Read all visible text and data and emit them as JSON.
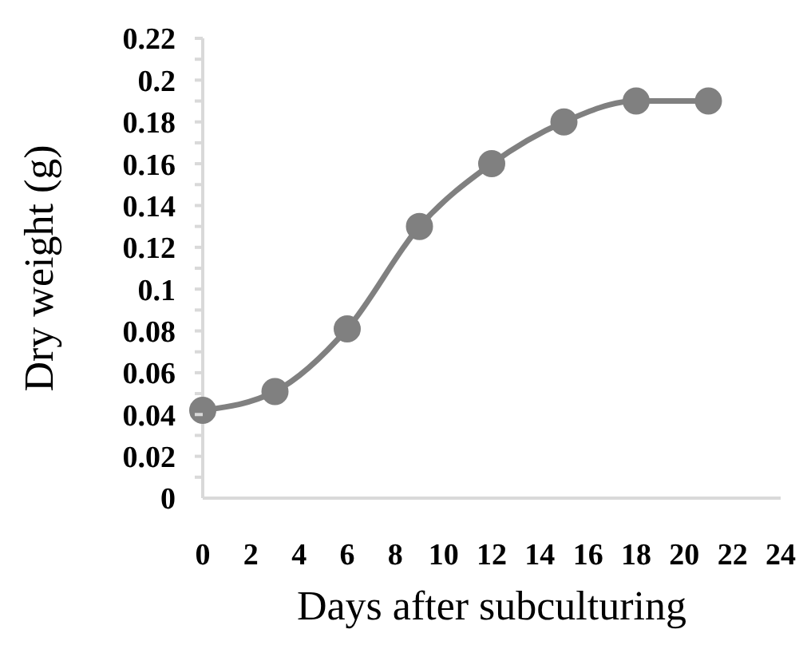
{
  "chart_data": {
    "type": "line",
    "xlabel": "Days after subculturing",
    "ylabel": "Dry weight (g)",
    "x": [
      0,
      3,
      6,
      9,
      12,
      15,
      18,
      21
    ],
    "series": [
      {
        "color": "#808080",
        "values": [
          0.042,
          0.051,
          0.081,
          0.13,
          0.16,
          0.18,
          0.19,
          0.19
        ]
      }
    ],
    "xlim": [
      0,
      24
    ],
    "xticks": [
      0,
      2,
      4,
      6,
      8,
      10,
      12,
      14,
      16,
      18,
      20,
      22,
      24
    ],
    "ylim": [
      0,
      0.22
    ],
    "yticks": [
      0,
      {
        "value": 0.01,
        "label": null
      },
      0.02,
      {
        "value": 0.03,
        "label": null
      },
      0.04,
      {
        "value": 0.05,
        "label": null
      },
      0.06,
      {
        "value": 0.07,
        "label": null
      },
      0.08,
      {
        "value": 0.09,
        "label": null
      },
      0.1,
      {
        "value": 0.11,
        "label": null
      },
      0.12,
      {
        "value": 0.13,
        "label": null
      },
      0.14,
      {
        "value": 0.15,
        "label": null
      },
      0.16,
      {
        "value": 0.17,
        "label": null
      },
      0.18,
      {
        "value": 0.19,
        "label": null
      },
      0.2,
      {
        "value": 0.21,
        "label": null
      },
      0.22
    ],
    "grid": false,
    "marker": "circle",
    "line_style": "solid"
  }
}
